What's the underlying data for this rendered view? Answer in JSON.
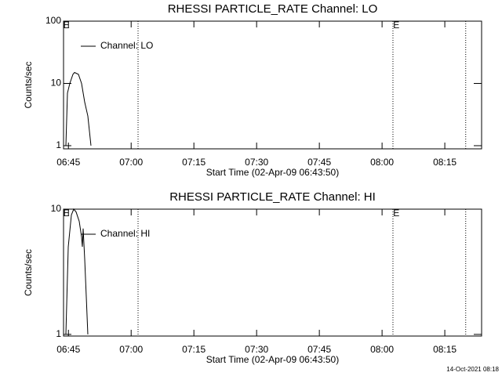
{
  "chart_data": [
    {
      "type": "line",
      "title": "RHESSI PARTICLE_RATE Channel: LO",
      "xlabel": "Start Time (02-Apr-09 06:43:50)",
      "ylabel": "Counts/sec",
      "log_y": true,
      "xlim": [
        43.83,
        143.8
      ],
      "ylim": [
        0.89,
        100
      ],
      "xticks": [
        {
          "value": 45,
          "label": "06:45"
        },
        {
          "value": 60,
          "label": "07:00"
        },
        {
          "value": 75,
          "label": "07:15"
        },
        {
          "value": 90,
          "label": "07:30"
        },
        {
          "value": 105,
          "label": "07:45"
        },
        {
          "value": 120,
          "label": "08:00"
        },
        {
          "value": 135,
          "label": "08:15"
        }
      ],
      "yticks": [
        1,
        10,
        100
      ],
      "vlines": [
        61.65,
        122.6,
        140.0
      ],
      "annotations": [
        {
          "text": "E",
          "x": 44.5
        },
        {
          "text": "E",
          "x": 123.4
        }
      ],
      "series": [
        {
          "name": "Channel: LO",
          "color": "#000000",
          "x": [
            44.39,
            44.77,
            45.33,
            46.08,
            46.46,
            47.39,
            48.14,
            48.89,
            49.64,
            50.39
          ],
          "values": [
            1,
            7,
            10,
            14,
            15,
            14,
            10,
            5,
            3,
            1
          ]
        }
      ]
    },
    {
      "type": "line",
      "title": "RHESSI PARTICLE_RATE Channel: HI",
      "xlabel": "Start Time (02-Apr-09 06:43:50)",
      "ylabel": "Counts/sec",
      "log_y": true,
      "xlim": [
        43.83,
        143.8
      ],
      "ylim": [
        0.97,
        10
      ],
      "xticks": [
        {
          "value": 45,
          "label": "06:45"
        },
        {
          "value": 60,
          "label": "07:00"
        },
        {
          "value": 75,
          "label": "07:15"
        },
        {
          "value": 90,
          "label": "07:30"
        },
        {
          "value": 105,
          "label": "07:45"
        },
        {
          "value": 120,
          "label": "08:00"
        },
        {
          "value": 135,
          "label": "08:15"
        }
      ],
      "yticks": [
        1,
        10
      ],
      "vlines": [
        61.65,
        122.6,
        140.0
      ],
      "annotations": [
        {
          "text": "E",
          "x": 44.5
        },
        {
          "text": "E",
          "x": 123.4
        }
      ],
      "series": [
        {
          "name": "Channel: HI",
          "color": "#000000",
          "x": [
            44.39,
            44.96,
            45.71,
            46.27,
            46.83,
            47.58,
            48.14,
            48.33,
            48.52,
            48.89,
            49.27,
            49.64
          ],
          "values": [
            1,
            5,
            9,
            10,
            9.5,
            8,
            6,
            5,
            7,
            4,
            2,
            1
          ]
        }
      ]
    }
  ],
  "footer": "14-Oct-2021 08:18"
}
